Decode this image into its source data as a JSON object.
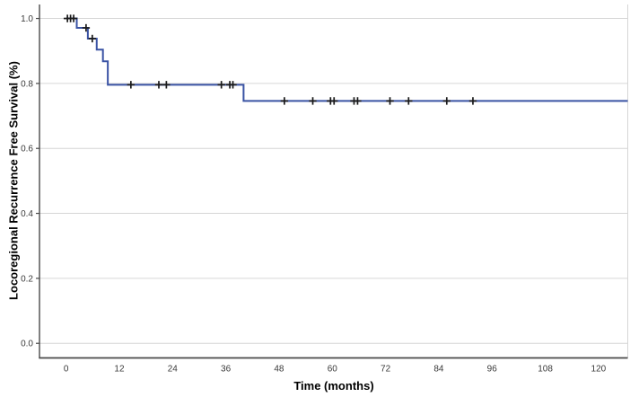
{
  "figure": {
    "x_axis_title": "Time (months)",
    "y_axis_title": "Locoregional Recurrence Free Survival (%)"
  },
  "chart_data": {
    "type": "line",
    "subtype": "kaplan-meier-step-function",
    "title": "",
    "xlabel": "Time (months)",
    "ylabel": "Locoregional Recurrence Free Survival (%)",
    "xlim": [
      -6,
      126.6
    ],
    "ylim": [
      -0.045,
      1.043
    ],
    "xticks": [
      0,
      12,
      24,
      36,
      48,
      60,
      72,
      84,
      96,
      108,
      120
    ],
    "yticks": [
      0.0,
      0.2,
      0.4,
      0.6,
      0.8,
      1.0
    ],
    "ytick_labels": [
      "0.0",
      "0.2",
      "0.4",
      "0.6",
      "0.8",
      "1.0"
    ],
    "grid": "horizontal",
    "legend": "none",
    "series": [
      {
        "name": "Locoregional recurrence free survival",
        "steps": [
          [
            0,
            1.0
          ],
          [
            2.4,
            0.971
          ],
          [
            4.9,
            0.938
          ],
          [
            6.9,
            0.904
          ],
          [
            8.3,
            0.868
          ],
          [
            9.4,
            0.796
          ],
          [
            40.0,
            0.746
          ]
        ],
        "end_time": 126.6,
        "censor_marks": [
          [
            0.3,
            1.0
          ],
          [
            1.0,
            1.0
          ],
          [
            1.7,
            1.0
          ],
          [
            4.5,
            0.971
          ],
          [
            5.9,
            0.938
          ],
          [
            14.6,
            0.796
          ],
          [
            20.9,
            0.796
          ],
          [
            22.6,
            0.796
          ],
          [
            35.0,
            0.796
          ],
          [
            36.9,
            0.796
          ],
          [
            37.6,
            0.796
          ],
          [
            49.2,
            0.746
          ],
          [
            55.6,
            0.746
          ],
          [
            59.6,
            0.746
          ],
          [
            60.4,
            0.746
          ],
          [
            64.9,
            0.746
          ],
          [
            65.7,
            0.746
          ],
          [
            73.0,
            0.746
          ],
          [
            77.2,
            0.746
          ],
          [
            85.8,
            0.746
          ],
          [
            91.7,
            0.746
          ]
        ]
      }
    ],
    "colors": {
      "curve": "#3a53a4",
      "censor": "#1a1a1a",
      "grid": "#d6d6d6",
      "axis": "#4a4a4a",
      "tick_label": "#3a3a3a",
      "title": "#000000",
      "background": "#ffffff"
    }
  }
}
